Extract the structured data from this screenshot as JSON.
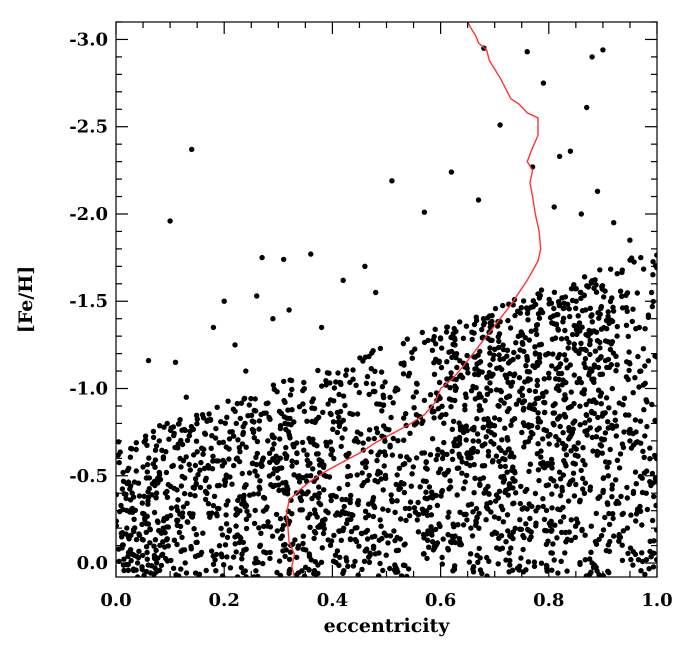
{
  "chart_data": {
    "type": "scatter",
    "title": "",
    "xlabel": "eccentricity",
    "ylabel": "[Fe/H]",
    "xlim": [
      0.0,
      1.0
    ],
    "ylim": [
      0.08,
      -3.1
    ],
    "y_axis_inverted": true,
    "grid": false,
    "xticks": [
      0.0,
      0.2,
      0.4,
      0.6,
      0.8,
      1.0
    ],
    "xtick_labels": [
      "0.0",
      "0.2",
      "0.4",
      "0.6",
      "0.8",
      "1.0"
    ],
    "yticks": [
      0.0,
      -0.5,
      -1.0,
      -1.5,
      -2.0,
      -2.5,
      -3.0
    ],
    "ytick_labels": [
      "0.0",
      "-0.5",
      "-1.0",
      "-1.5",
      "-2.0",
      "-2.5",
      "-3.0"
    ],
    "colors": {
      "points": "#000000",
      "trend_line": "#ff3333",
      "axes": "#000000"
    },
    "series": [
      {
        "type": "scatter",
        "points": [
          [
            0.14,
            -2.37
          ],
          [
            0.1,
            -1.96
          ],
          [
            0.06,
            -1.16
          ],
          [
            0.11,
            -1.15
          ],
          [
            0.18,
            -1.35
          ],
          [
            0.2,
            -1.5
          ],
          [
            0.22,
            -1.25
          ],
          [
            0.26,
            -1.53
          ],
          [
            0.27,
            -1.75
          ],
          [
            0.31,
            -1.74
          ],
          [
            0.36,
            -1.77
          ],
          [
            0.38,
            -1.35
          ],
          [
            0.51,
            -2.19
          ],
          [
            0.57,
            -2.01
          ],
          [
            0.62,
            -2.24
          ],
          [
            0.67,
            -2.08
          ],
          [
            0.68,
            -2.95
          ],
          [
            0.71,
            -2.51
          ],
          [
            0.76,
            -2.93
          ],
          [
            0.77,
            -2.27
          ],
          [
            0.79,
            -2.75
          ],
          [
            0.82,
            -2.33
          ],
          [
            0.84,
            -2.36
          ],
          [
            0.87,
            -2.61
          ],
          [
            0.88,
            -2.9
          ],
          [
            0.9,
            -2.94
          ],
          [
            0.86,
            -2.0
          ],
          [
            0.92,
            -1.95
          ],
          [
            0.95,
            -1.85
          ],
          [
            0.97,
            -1.75
          ],
          [
            0.89,
            -2.13
          ],
          [
            0.81,
            -2.04
          ],
          [
            0.46,
            -1.7
          ],
          [
            0.48,
            -1.55
          ],
          [
            0.42,
            -1.62
          ],
          [
            0.32,
            -1.45
          ],
          [
            0.29,
            -1.4
          ],
          [
            0.24,
            -1.1
          ],
          [
            0.16,
            -0.85
          ],
          [
            0.13,
            -0.95
          ],
          [
            0.08,
            -0.7
          ],
          [
            0.05,
            -0.55
          ],
          [
            0.03,
            -0.4
          ],
          [
            0.02,
            -0.2
          ],
          [
            0.04,
            0.0
          ],
          [
            0.98,
            -0.4
          ],
          [
            0.99,
            -1.55
          ],
          [
            0.96,
            -0.05
          ],
          [
            0.93,
            -0.15
          ],
          [
            0.88,
            0.0
          ],
          [
            0.97,
            -1.1
          ],
          [
            0.95,
            -0.7
          ],
          [
            0.91,
            -0.5
          ],
          [
            0.85,
            -0.45
          ]
        ],
        "random_fill": {
          "count": 2300,
          "seed": 7,
          "x_range": [
            0.0,
            1.0
          ],
          "y_range": [
            0.08,
            -1.8
          ],
          "envelope": "upper [Fe/H] bound rises linearly from -0.7 at e=0.0 to -1.8 at e=1.0; density highest at low e and near-solar [Fe/H], plus a dense metal-poor clump at e≈0.65–0.9"
        }
      },
      {
        "type": "line",
        "name": "",
        "points": [
          [
            0.33,
            0.08
          ],
          [
            0.325,
            0.02
          ],
          [
            0.33,
            -0.05
          ],
          [
            0.32,
            -0.12
          ],
          [
            0.318,
            -0.2
          ],
          [
            0.315,
            -0.28
          ],
          [
            0.32,
            -0.36
          ],
          [
            0.34,
            -0.42
          ],
          [
            0.36,
            -0.47
          ],
          [
            0.39,
            -0.53
          ],
          [
            0.42,
            -0.58
          ],
          [
            0.45,
            -0.63
          ],
          [
            0.48,
            -0.69
          ],
          [
            0.51,
            -0.74
          ],
          [
            0.54,
            -0.79
          ],
          [
            0.57,
            -0.85
          ],
          [
            0.59,
            -0.92
          ],
          [
            0.6,
            -1.0
          ],
          [
            0.62,
            -1.05
          ],
          [
            0.64,
            -1.12
          ],
          [
            0.66,
            -1.2
          ],
          [
            0.68,
            -1.28
          ],
          [
            0.7,
            -1.36
          ],
          [
            0.73,
            -1.48
          ],
          [
            0.76,
            -1.62
          ],
          [
            0.78,
            -1.73
          ],
          [
            0.785,
            -1.8
          ],
          [
            0.782,
            -1.9
          ],
          [
            0.775,
            -2.0
          ],
          [
            0.77,
            -2.1
          ],
          [
            0.765,
            -2.18
          ],
          [
            0.77,
            -2.25
          ],
          [
            0.76,
            -2.3
          ],
          [
            0.77,
            -2.38
          ],
          [
            0.78,
            -2.45
          ],
          [
            0.78,
            -2.55
          ],
          [
            0.76,
            -2.58
          ],
          [
            0.745,
            -2.63
          ],
          [
            0.73,
            -2.66
          ],
          [
            0.72,
            -2.72
          ],
          [
            0.71,
            -2.78
          ],
          [
            0.7,
            -2.83
          ],
          [
            0.69,
            -2.88
          ],
          [
            0.685,
            -2.94
          ],
          [
            0.67,
            -2.98
          ],
          [
            0.665,
            -3.02
          ],
          [
            0.655,
            -3.07
          ],
          [
            0.65,
            -3.1
          ]
        ]
      }
    ]
  }
}
